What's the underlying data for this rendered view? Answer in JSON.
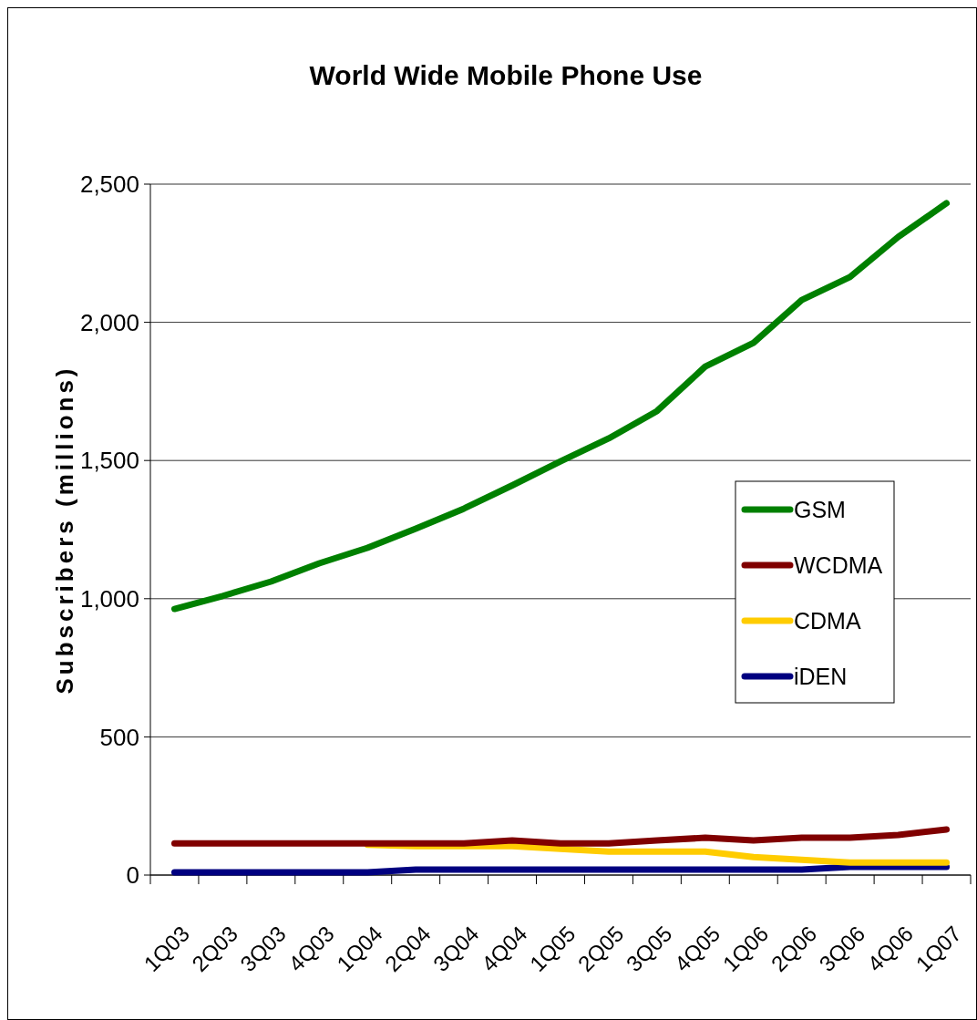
{
  "chart_data": {
    "type": "line",
    "title": "World Wide Mobile Phone Use",
    "ylabel": "Subscribers (millions)",
    "categories": [
      "1Q03",
      "2Q03",
      "3Q03",
      "4Q03",
      "1Q04",
      "2Q04",
      "3Q04",
      "4Q04",
      "1Q05",
      "2Q05",
      "3Q05",
      "4Q05",
      "1Q06",
      "2Q06",
      "3Q06",
      "4Q06",
      "1Q07"
    ],
    "series": [
      {
        "name": "GSM",
        "color": "#008000",
        "values": [
          963,
          1010,
          1062,
          1128,
          1184,
          1253,
          1326,
          1410,
          1497,
          1580,
          1679,
          1840,
          1926,
          2081,
          2164,
          2309,
          2431
        ]
      },
      {
        "name": "WCDMA",
        "color": "#800000",
        "values": [
          115,
          115,
          115,
          115,
          115,
          115,
          115,
          125,
          115,
          115,
          125,
          135,
          125,
          135,
          135,
          145,
          165
        ]
      },
      {
        "name": "CDMA",
        "color": "#ffcc00",
        "values": [
          null,
          null,
          null,
          null,
          110,
          105,
          105,
          105,
          95,
          85,
          85,
          85,
          65,
          55,
          45,
          45,
          45
        ]
      },
      {
        "name": "iDEN",
        "color": "#000080",
        "values": [
          10,
          10,
          10,
          10,
          10,
          20,
          20,
          20,
          20,
          20,
          20,
          20,
          20,
          20,
          30,
          30,
          30
        ]
      }
    ],
    "ylim": [
      0,
      2500
    ],
    "yticks": [
      {
        "value": 0,
        "label": "0"
      },
      {
        "value": 500,
        "label": "500"
      },
      {
        "value": 1000,
        "label": "1,000"
      },
      {
        "value": 1500,
        "label": "1,500"
      },
      {
        "value": 2000,
        "label": "2,000"
      },
      {
        "value": 2500,
        "label": "2,500"
      }
    ],
    "grid": "y",
    "legend": "right",
    "marker": "none",
    "line_style": "solid"
  }
}
